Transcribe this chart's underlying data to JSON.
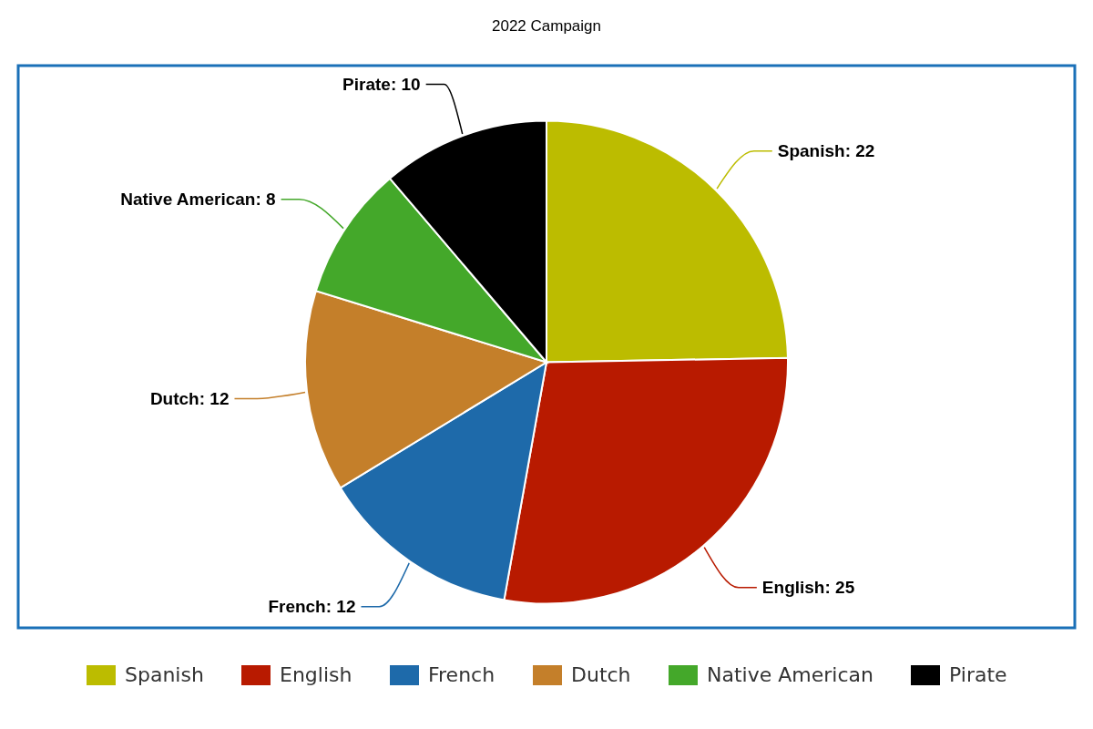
{
  "chart_data": {
    "type": "pie",
    "title": "2022 Campaign",
    "categories": [
      "Spanish",
      "English",
      "French",
      "Dutch",
      "Native American",
      "Pirate"
    ],
    "values": [
      22,
      25,
      12,
      12,
      8,
      10
    ],
    "value_labels": [
      "Spanish: 22",
      "English: 25",
      "French: 12",
      "Dutch: 12",
      "Native American: 8",
      "Pirate: 10"
    ],
    "colors": [
      "#bcbc00",
      "#b81a00",
      "#1e6aaa",
      "#c47f2a",
      "#44a82a",
      "#000000"
    ],
    "legend": "bottom"
  }
}
